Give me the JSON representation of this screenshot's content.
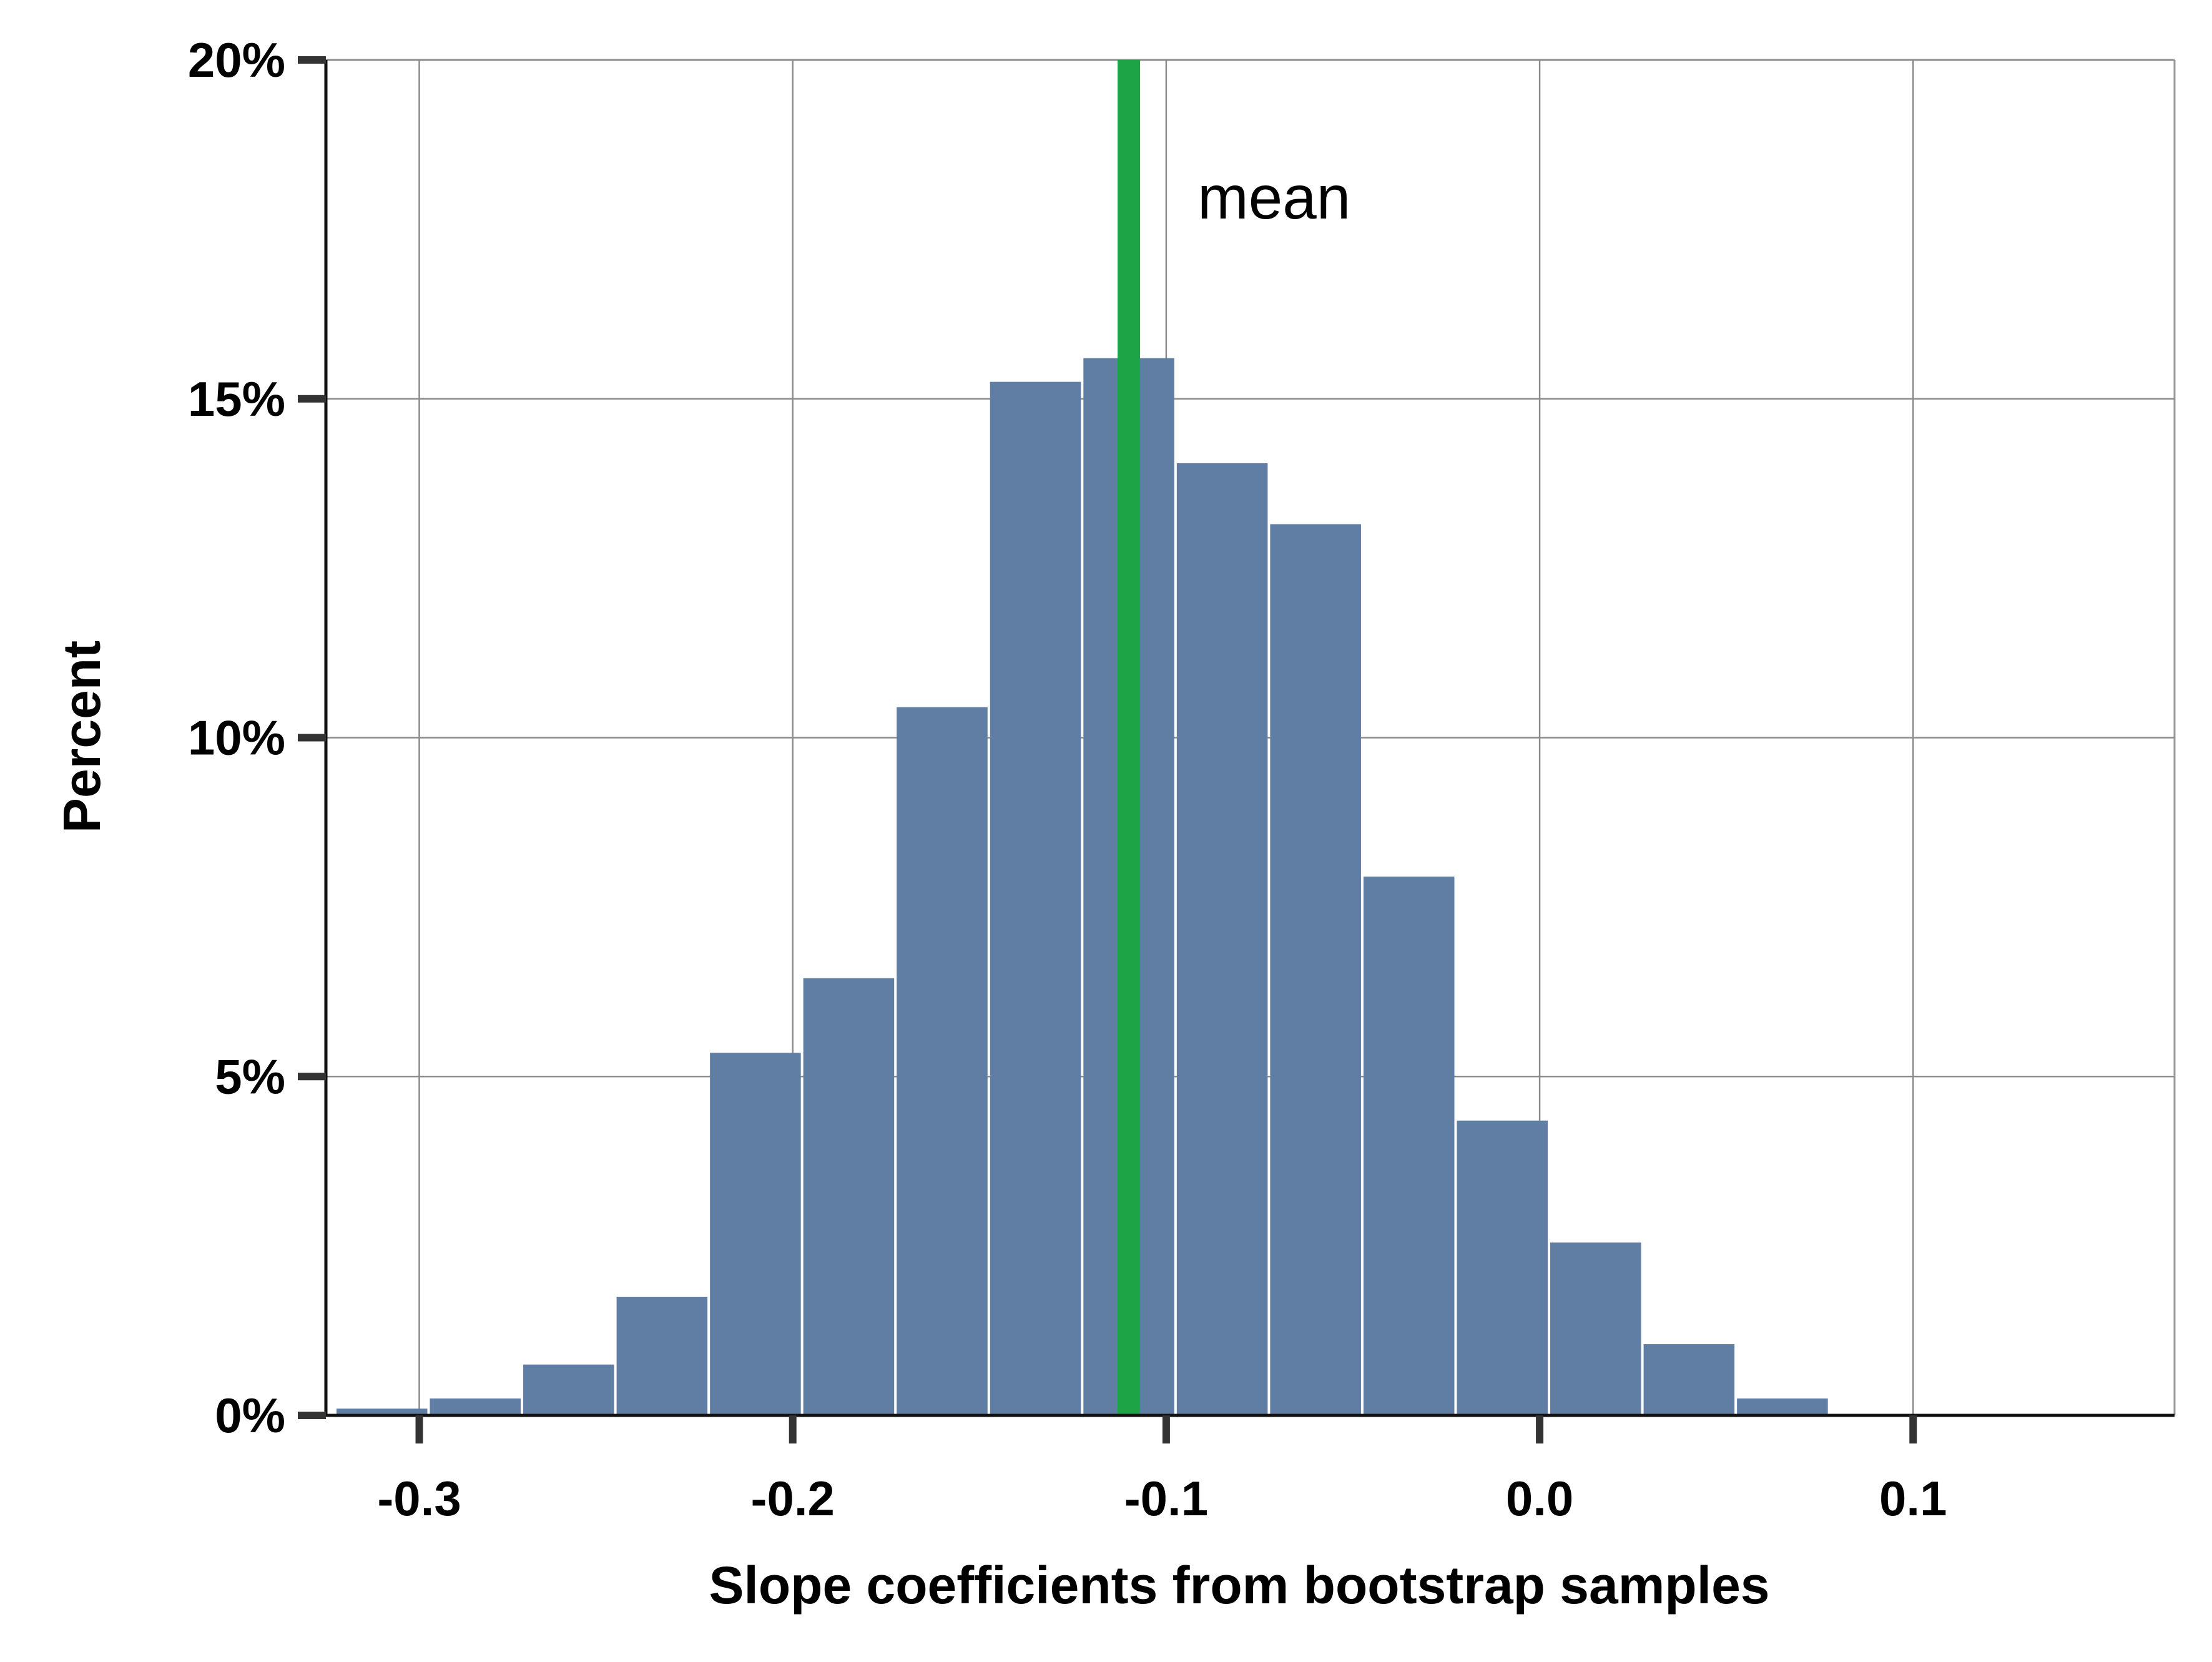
{
  "chart_data": {
    "type": "bar",
    "xlabel": "Slope coefficients from bootstrap samples",
    "ylabel": "Percent",
    "xlim": [
      -0.325,
      0.17
    ],
    "ylim": [
      0,
      20
    ],
    "x_ticks": [
      -0.3,
      -0.2,
      -0.1,
      0.0,
      0.1
    ],
    "x_tick_labels": [
      "-0.3",
      "-0.2",
      "-0.1",
      "0.0",
      "0.1"
    ],
    "y_ticks": [
      0,
      5,
      10,
      15,
      20
    ],
    "y_tick_labels": [
      "0%",
      "5%",
      "10%",
      "15%",
      "20%"
    ],
    "grid": true,
    "bin_edges": [
      -0.3225,
      -0.2975,
      -0.2725,
      -0.2475,
      -0.2225,
      -0.1975,
      -0.1725,
      -0.1475,
      -0.1225,
      -0.0975,
      -0.0725,
      -0.0475,
      -0.0225,
      0.0025,
      0.0275,
      0.0525,
      0.0775
    ],
    "values": [
      0.1,
      0.25,
      0.75,
      1.75,
      5.35,
      6.45,
      10.45,
      15.25,
      15.6,
      14.05,
      13.15,
      7.95,
      4.35,
      2.55,
      1.05,
      0.25
    ],
    "bar_color": "#607ea3",
    "mean_line": {
      "x": -0.11,
      "color": "#1da446",
      "label": "mean"
    }
  }
}
